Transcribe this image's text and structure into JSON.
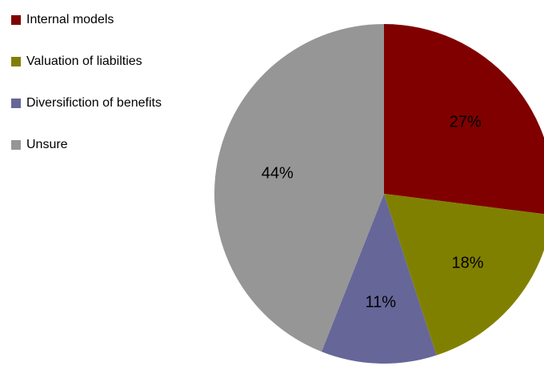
{
  "chart_data": {
    "type": "pie",
    "categories": [
      "Internal models",
      "Valuation of liabilties",
      "Diversifiction of benefits",
      "Unsure"
    ],
    "values": [
      27,
      18,
      11,
      44
    ],
    "data_labels": [
      "27%",
      "18%",
      "11%",
      "44%"
    ],
    "colors": [
      "#800000",
      "#808000",
      "#666699",
      "#969696"
    ],
    "start_angle_deg": 0,
    "direction": "clockwise",
    "legend_position": "top-left"
  }
}
